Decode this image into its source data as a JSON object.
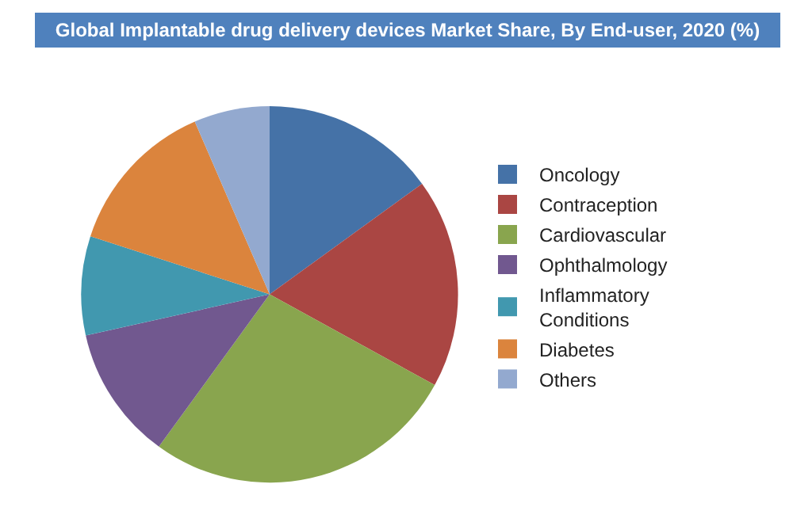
{
  "chart_data": {
    "type": "pie",
    "title": "Global Implantable drug delivery devices Market Share, By End-user, 2020 (%)",
    "categories": [
      "Oncology",
      "Contraception",
      "Cardiovascular",
      "Ophthalmology",
      "Inflammatory Conditions",
      "Diabetes",
      "Others"
    ],
    "values": [
      15,
      18,
      27,
      11.5,
      8.5,
      13.5,
      6.5
    ],
    "colors": [
      "#4572a7",
      "#aa4643",
      "#89a54e",
      "#71588f",
      "#4198af",
      "#db843d",
      "#93a9cf"
    ],
    "legend": "right"
  }
}
